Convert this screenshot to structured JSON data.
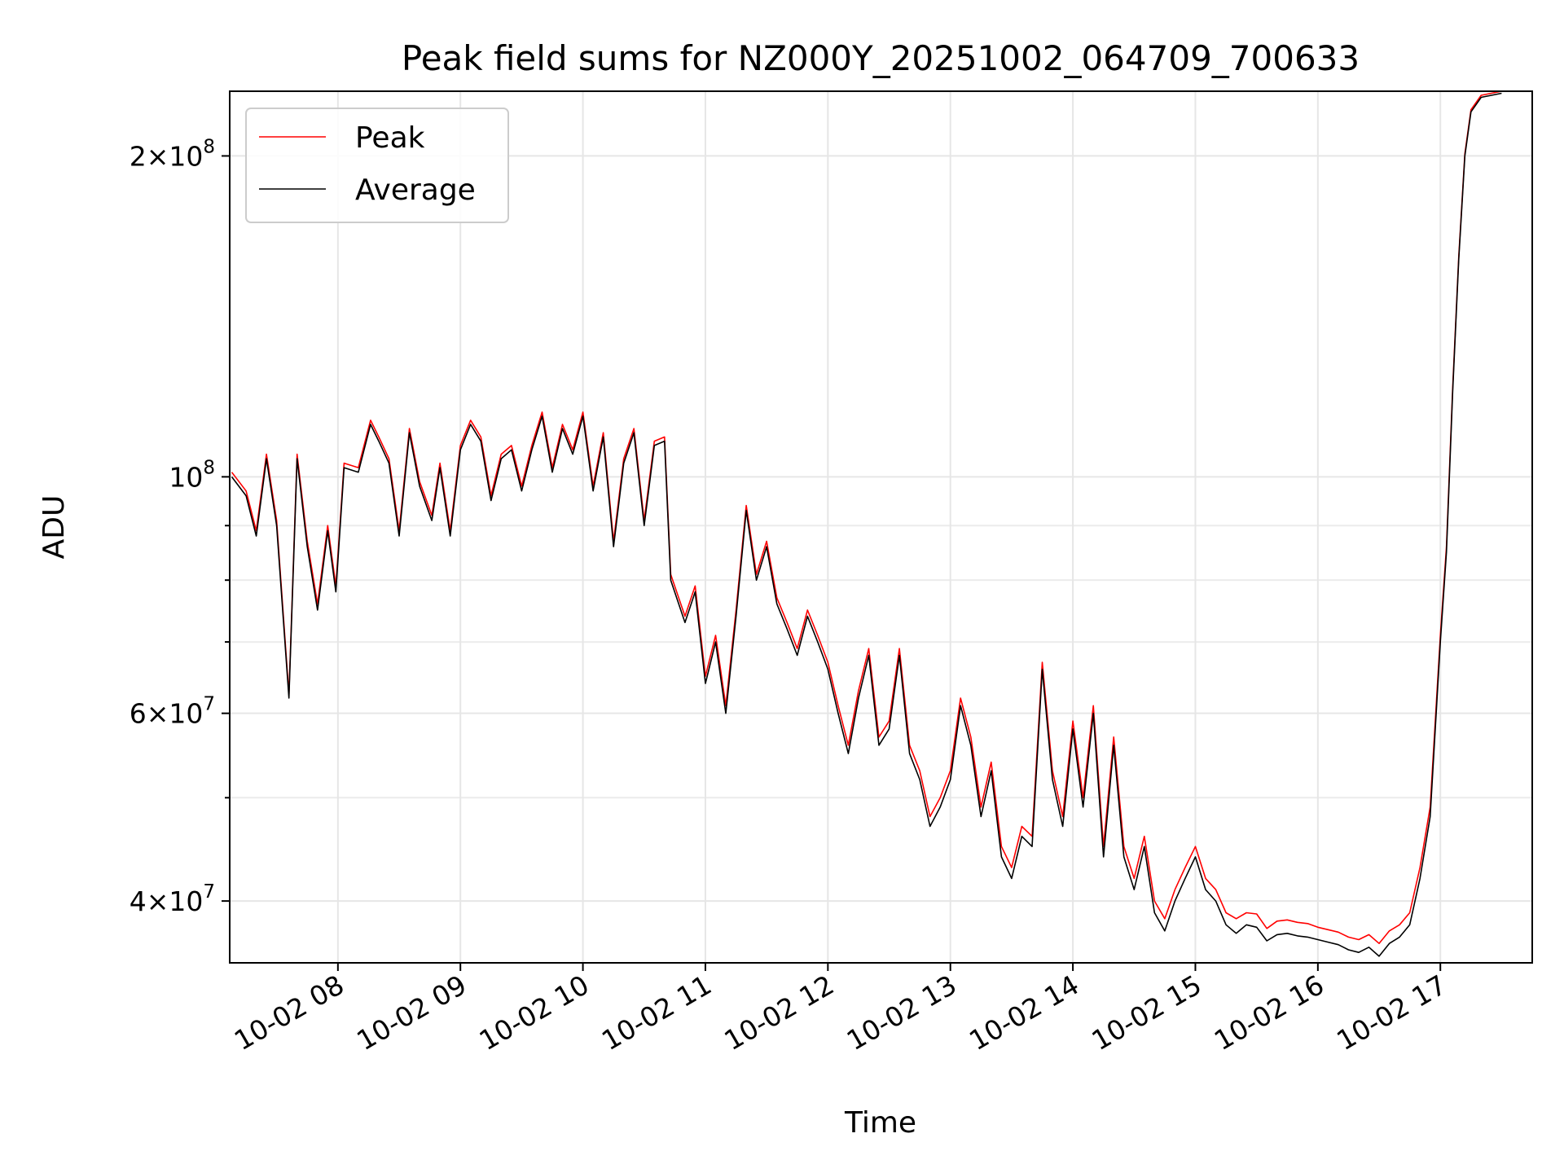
{
  "chart_data": {
    "type": "line",
    "title": "Peak field sums for NZ000Y_20251002_064709_700633",
    "xlabel": "Time",
    "ylabel": "ADU",
    "x_format": "hours",
    "xlim": [
      "10-02 07:07",
      "10-02 17:45"
    ],
    "ylim": [
      35000000,
      230000000
    ],
    "yscale": "log",
    "grid": true,
    "legend": "upper-left",
    "x_ticks": [
      "10-02 08",
      "10-02 09",
      "10-02 10",
      "10-02 11",
      "10-02 12",
      "10-02 13",
      "10-02 14",
      "10-02 15",
      "10-02 16",
      "10-02 17"
    ],
    "y_ticks": [
      {
        "value": 40000000,
        "mantissa": "4",
        "exp": "7"
      },
      {
        "value": 60000000,
        "mantissa": "6",
        "exp": "7"
      },
      {
        "value": 100000000,
        "mantissa": "",
        "exp": "8"
      },
      {
        "value": 200000000,
        "mantissa": "2",
        "exp": "8"
      }
    ],
    "y_minor_ticks": [
      50000000,
      70000000,
      80000000,
      90000000
    ],
    "series": [
      {
        "name": "Average",
        "color": "#000000",
        "x": [
          "07:08",
          "07:15",
          "07:20",
          "07:25",
          "07:30",
          "07:36",
          "07:40",
          "07:45",
          "07:50",
          "07:55",
          "07:59",
          "08:03",
          "08:10",
          "08:16",
          "08:20",
          "08:25",
          "08:30",
          "08:35",
          "08:40",
          "08:46",
          "08:50",
          "08:55",
          "09:00",
          "09:05",
          "09:10",
          "09:15",
          "09:20",
          "09:25",
          "09:30",
          "09:35",
          "09:40",
          "09:45",
          "09:50",
          "09:55",
          "10:00",
          "10:05",
          "10:10",
          "10:15",
          "10:20",
          "10:25",
          "10:30",
          "10:35",
          "10:40",
          "10:43",
          "10:50",
          "10:55",
          "11:00",
          "11:05",
          "11:10",
          "11:15",
          "11:20",
          "11:25",
          "11:30",
          "11:35",
          "11:40",
          "11:45",
          "11:50",
          "11:55",
          "12:00",
          "12:05",
          "12:10",
          "12:15",
          "12:20",
          "12:25",
          "12:30",
          "12:35",
          "12:40",
          "12:45",
          "12:50",
          "12:55",
          "13:00",
          "13:05",
          "13:10",
          "13:15",
          "13:20",
          "13:25",
          "13:30",
          "13:35",
          "13:40",
          "13:45",
          "13:50",
          "13:55",
          "14:00",
          "14:05",
          "14:10",
          "14:15",
          "14:20",
          "14:25",
          "14:30",
          "14:35",
          "14:40",
          "14:45",
          "14:50",
          "14:55",
          "15:00",
          "15:05",
          "15:10",
          "15:15",
          "15:20",
          "15:25",
          "15:30",
          "15:35",
          "15:40",
          "15:45",
          "15:50",
          "15:55",
          "16:00",
          "16:05",
          "16:10",
          "16:15",
          "16:20",
          "16:25",
          "16:30",
          "16:35",
          "16:40",
          "16:45",
          "16:50",
          "16:55",
          "17:00",
          "17:03",
          "17:06",
          "17:09",
          "17:12",
          "17:15",
          "17:20",
          "17:30"
        ],
        "values": [
          100000000,
          96000000,
          88000000,
          104000000,
          90000000,
          62000000,
          104000000,
          86000000,
          75000000,
          89000000,
          78000000,
          102000000,
          101000000,
          112000000,
          108000000,
          103000000,
          88000000,
          110000000,
          98000000,
          91000000,
          102000000,
          88000000,
          106000000,
          112000000,
          108000000,
          95000000,
          104000000,
          106000000,
          97000000,
          106000000,
          114000000,
          101000000,
          111000000,
          105000000,
          114000000,
          97000000,
          109000000,
          86000000,
          103000000,
          110000000,
          90000000,
          107000000,
          108000000,
          80000000,
          73000000,
          78000000,
          64000000,
          70000000,
          60000000,
          74000000,
          93000000,
          80000000,
          86000000,
          76000000,
          72000000,
          68000000,
          74000000,
          70000000,
          66000000,
          60000000,
          55000000,
          62000000,
          68000000,
          56000000,
          58000000,
          68000000,
          55000000,
          52000000,
          47000000,
          49000000,
          52000000,
          61000000,
          56000000,
          48000000,
          53000000,
          44000000,
          42000000,
          46000000,
          45000000,
          66000000,
          52000000,
          47000000,
          58000000,
          49000000,
          60000000,
          44000000,
          56000000,
          44000000,
          41000000,
          45000000,
          39000000,
          37500000,
          40000000,
          42000000,
          44000000,
          41000000,
          40000000,
          38000000,
          37300000,
          38000000,
          37800000,
          36700000,
          37200000,
          37300000,
          37100000,
          37000000,
          36800000,
          36600000,
          36400000,
          36000000,
          35800000,
          36200000,
          35500000,
          36500000,
          37000000,
          38000000,
          42000000,
          48000000,
          70000000,
          85000000,
          120000000,
          160000000,
          200000000,
          220000000,
          227000000,
          229000000
        ]
      },
      {
        "name": "Peak",
        "color": "#ff0000",
        "x": [
          "07:08",
          "07:15",
          "07:20",
          "07:25",
          "07:30",
          "07:36",
          "07:40",
          "07:45",
          "07:50",
          "07:55",
          "07:59",
          "08:03",
          "08:10",
          "08:16",
          "08:20",
          "08:25",
          "08:30",
          "08:35",
          "08:40",
          "08:46",
          "08:50",
          "08:55",
          "09:00",
          "09:05",
          "09:10",
          "09:15",
          "09:20",
          "09:25",
          "09:30",
          "09:35",
          "09:40",
          "09:45",
          "09:50",
          "09:55",
          "10:00",
          "10:05",
          "10:10",
          "10:15",
          "10:20",
          "10:25",
          "10:30",
          "10:35",
          "10:40",
          "10:43",
          "10:50",
          "10:55",
          "11:00",
          "11:05",
          "11:10",
          "11:15",
          "11:20",
          "11:25",
          "11:30",
          "11:35",
          "11:40",
          "11:45",
          "11:50",
          "11:55",
          "12:00",
          "12:05",
          "12:10",
          "12:15",
          "12:20",
          "12:25",
          "12:30",
          "12:35",
          "12:40",
          "12:45",
          "12:50",
          "12:55",
          "13:00",
          "13:05",
          "13:10",
          "13:15",
          "13:20",
          "13:25",
          "13:30",
          "13:35",
          "13:40",
          "13:45",
          "13:50",
          "13:55",
          "14:00",
          "14:05",
          "14:10",
          "14:15",
          "14:20",
          "14:25",
          "14:30",
          "14:35",
          "14:40",
          "14:45",
          "14:50",
          "14:55",
          "15:00",
          "15:05",
          "15:10",
          "15:15",
          "15:20",
          "15:25",
          "15:30",
          "15:35",
          "15:40",
          "15:45",
          "15:50",
          "15:55",
          "16:00",
          "16:05",
          "16:10",
          "16:15",
          "16:20",
          "16:25",
          "16:30",
          "16:35",
          "16:40",
          "16:45",
          "16:50",
          "16:55",
          "17:00",
          "17:03",
          "17:06",
          "17:09",
          "17:12",
          "17:15",
          "17:20",
          "17:30"
        ],
        "values": [
          101000000,
          97000000,
          89000000,
          105000000,
          91000000,
          62500000,
          105000000,
          87000000,
          76000000,
          90000000,
          79000000,
          103000000,
          102000000,
          113000000,
          109000000,
          104000000,
          89000000,
          111000000,
          99000000,
          92000000,
          103000000,
          89000000,
          107000000,
          113000000,
          109000000,
          96000000,
          105000000,
          107000000,
          98000000,
          107000000,
          115000000,
          102000000,
          112000000,
          106000000,
          115000000,
          98000000,
          110000000,
          87000000,
          104000000,
          111000000,
          91000000,
          108000000,
          109000000,
          81000000,
          74000000,
          79000000,
          65000000,
          71000000,
          61000000,
          75000000,
          94000000,
          81000000,
          87000000,
          77000000,
          73000000,
          69000000,
          75000000,
          71000000,
          67000000,
          61000000,
          56000000,
          63000000,
          69000000,
          57000000,
          59000000,
          69000000,
          56000000,
          53000000,
          48000000,
          50000000,
          53000000,
          62000000,
          57000000,
          49000000,
          54000000,
          45000000,
          43000000,
          47000000,
          46000000,
          67000000,
          53000000,
          48000000,
          59000000,
          50000000,
          61000000,
          45000000,
          57000000,
          45000000,
          42000000,
          46000000,
          40000000,
          38500000,
          41000000,
          43000000,
          45000000,
          42000000,
          41000000,
          39000000,
          38500000,
          39000000,
          38900000,
          37700000,
          38300000,
          38400000,
          38200000,
          38100000,
          37800000,
          37600000,
          37400000,
          37000000,
          36800000,
          37200000,
          36500000,
          37500000,
          38000000,
          39000000,
          43000000,
          49000000,
          71000000,
          86000000,
          121000000,
          161000000,
          201000000,
          221000000,
          228000000,
          230000000
        ]
      }
    ]
  },
  "legend": {
    "peak_label": "Peak",
    "average_label": "Average"
  }
}
